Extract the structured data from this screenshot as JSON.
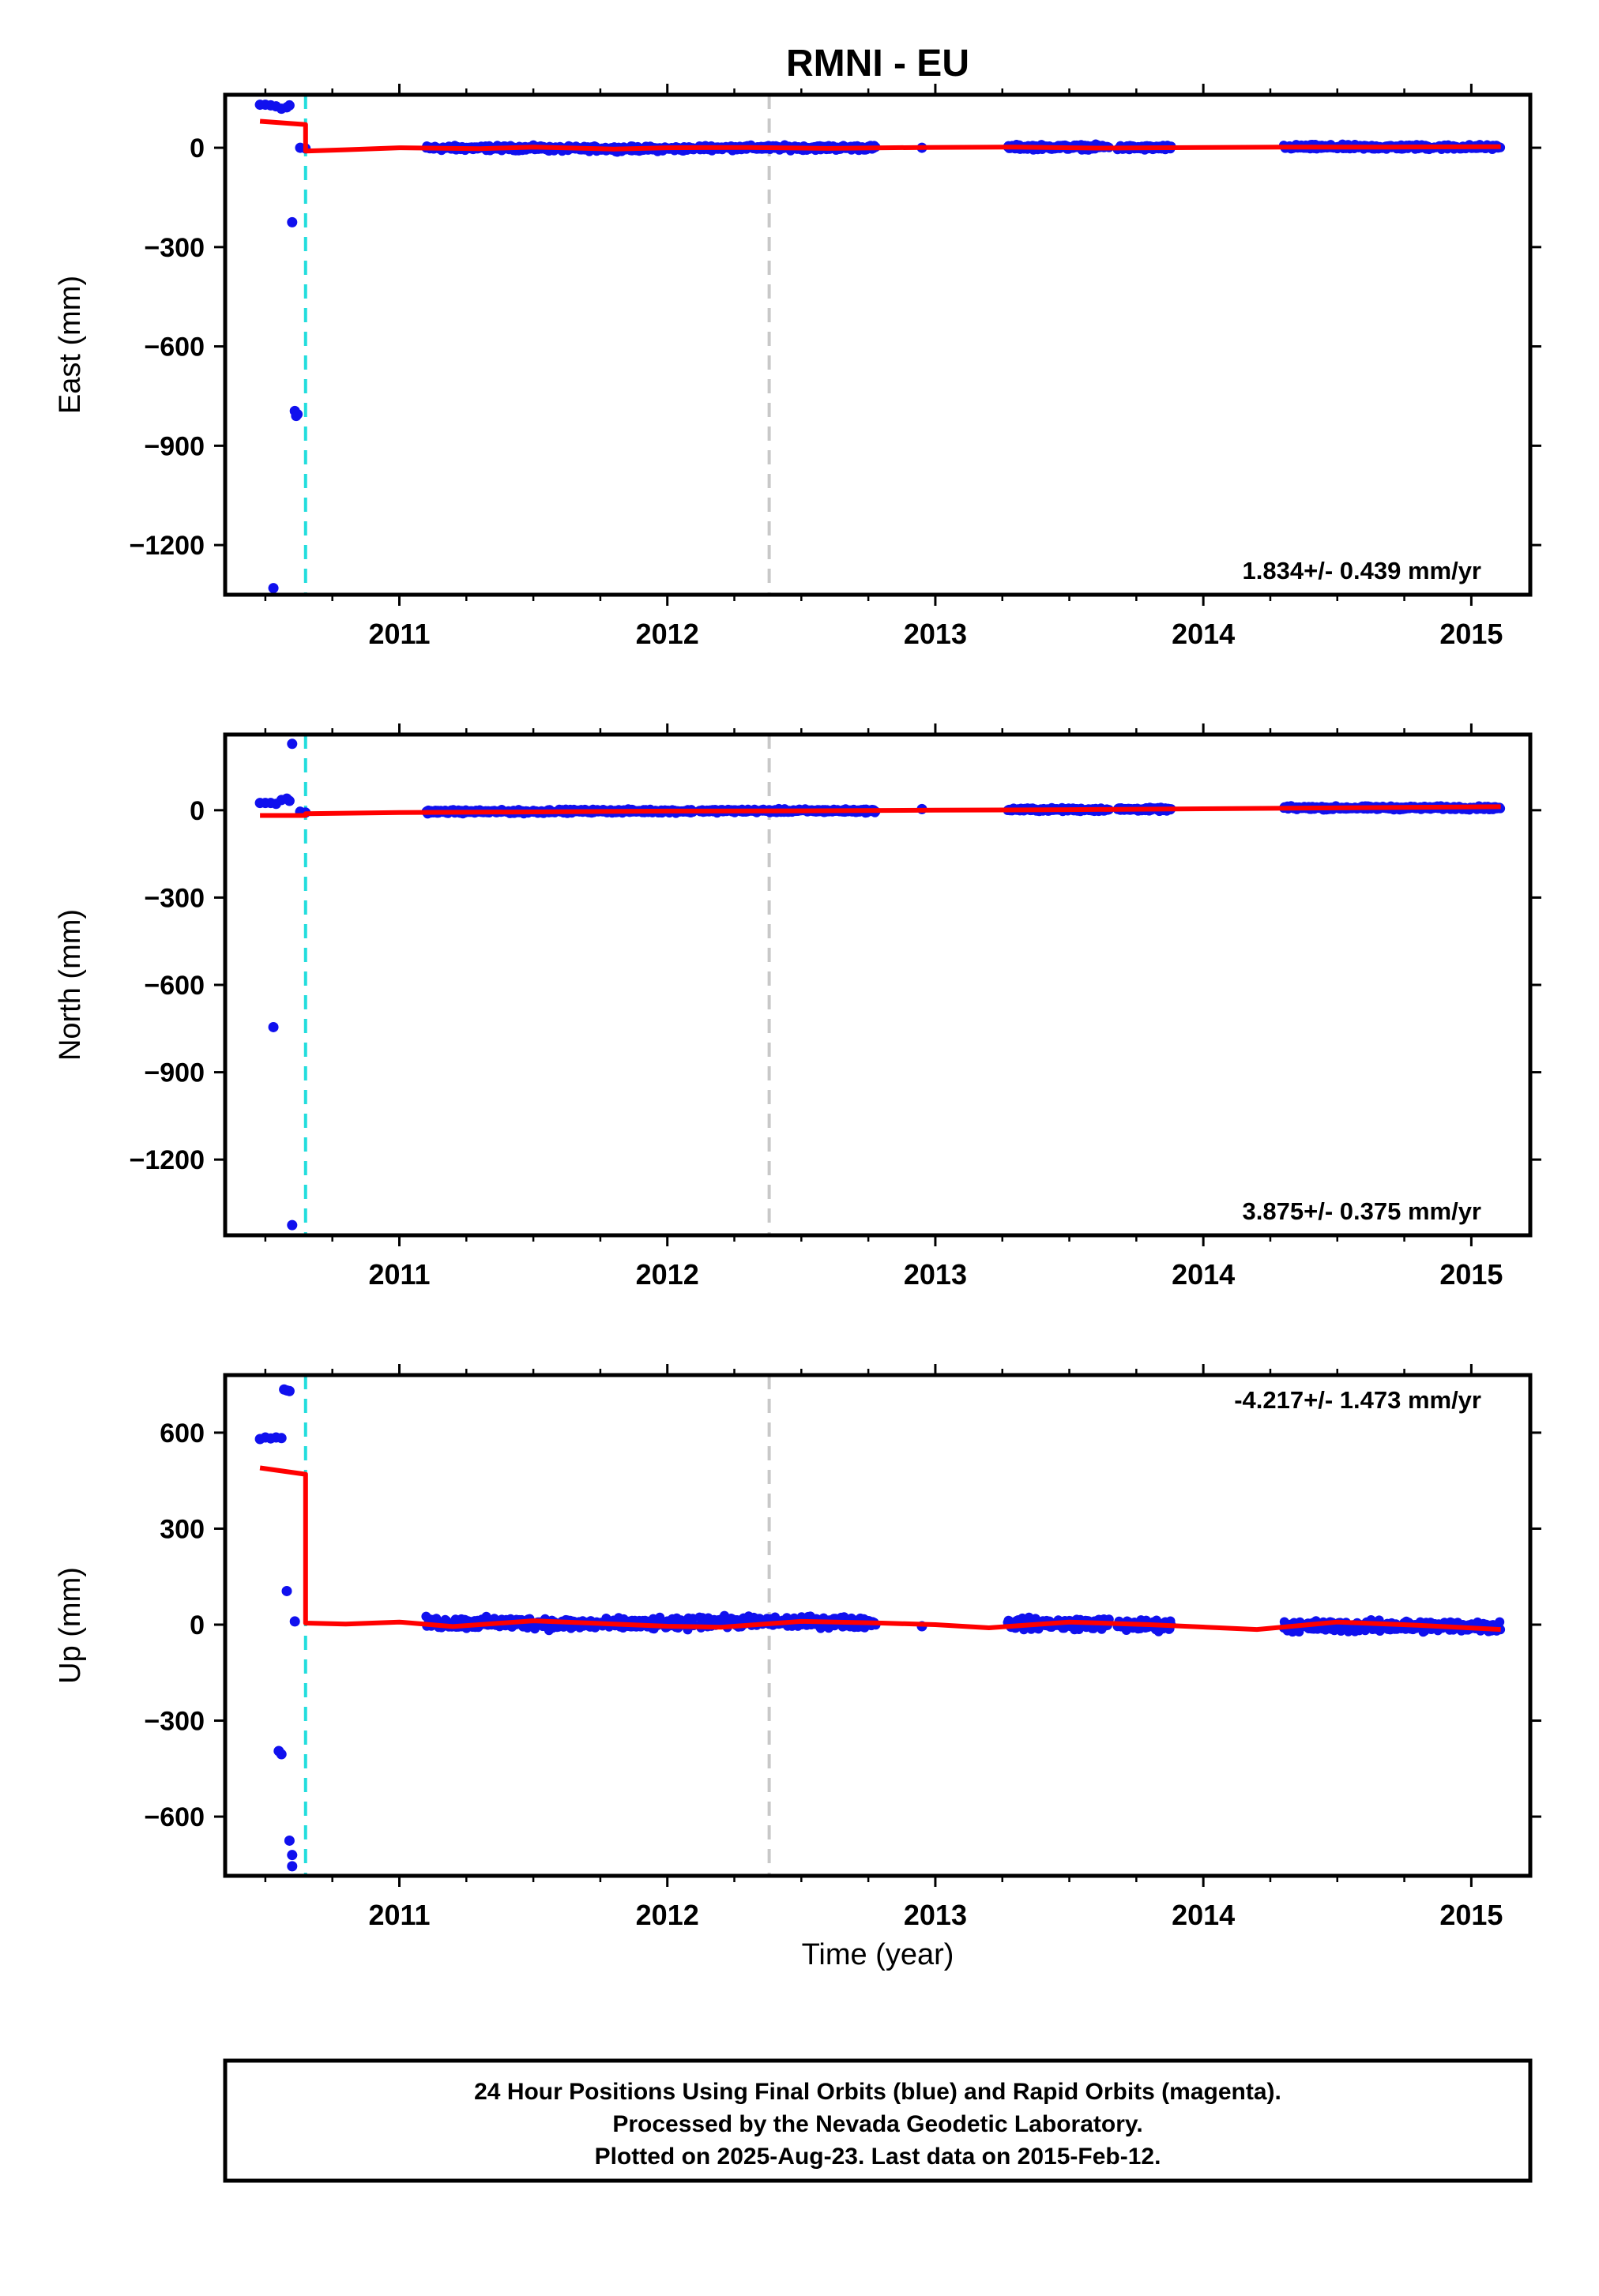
{
  "title": "RMNI - EU",
  "xlabel": "Time (year)",
  "footer": {
    "lines": [
      "24 Hour Positions Using Final Orbits (blue) and Rapid Orbits (magenta).",
      "Processed by the Nevada Geodetic Laboratory.",
      "Plotted on 2025-Aug-23. Last data on 2015-Feb-12."
    ]
  },
  "colors": {
    "data_points": "#1010ee",
    "model_line": "#ff0000",
    "offset_line_equipment": "#22dddd",
    "offset_line_other": "#c8c8c8",
    "frame": "#000000"
  },
  "chart_data": [
    {
      "type": "scatter",
      "ylabel": "East (mm)",
      "rate_text": "1.834+/- 0.439 mm/yr",
      "xlim": [
        2010.35,
        2015.22
      ],
      "ylim": [
        -1350,
        160
      ],
      "yticks": [
        0,
        -300,
        -600,
        -900,
        -1200
      ],
      "xticks": [
        2011,
        2012,
        2013,
        2014,
        2015
      ],
      "grid": false,
      "offsets": [
        {
          "year": 2010.65,
          "kind": "equipment"
        },
        {
          "year": 2012.38,
          "kind": "other"
        }
      ],
      "points": [
        [
          2010.48,
          130
        ],
        [
          2010.5,
          130
        ],
        [
          2010.52,
          128
        ],
        [
          2010.54,
          125
        ],
        [
          2010.56,
          118
        ],
        [
          2010.58,
          122
        ],
        [
          2010.59,
          128
        ],
        [
          2010.6,
          -225
        ],
        [
          2010.61,
          -795
        ],
        [
          2010.615,
          -810
        ],
        [
          2010.62,
          -805
        ],
        [
          2010.53,
          -1330
        ],
        [
          2010.63,
          0
        ],
        [
          2010.65,
          -2
        ]
      ],
      "segments": [
        {
          "start": 2011.1,
          "end": 2011.55,
          "base": -1,
          "noise": 6
        },
        {
          "start": 2011.55,
          "end": 2012.1,
          "base": -3,
          "noise": 6
        },
        {
          "start": 2012.12,
          "end": 2012.78,
          "base": 0,
          "noise": 6
        },
        {
          "start": 2013.27,
          "end": 2013.65,
          "base": 2,
          "noise": 6
        },
        {
          "start": 2013.68,
          "end": 2013.88,
          "base": 0,
          "noise": 6
        },
        {
          "start": 2014.3,
          "end": 2015.11,
          "base": 2,
          "noise": 6
        }
      ],
      "single_points": [
        [
          2012.95,
          0
        ]
      ],
      "model": [
        [
          2010.48,
          80
        ],
        [
          2010.65,
          70
        ],
        [
          2010.65,
          -10
        ],
        [
          2010.8,
          -6
        ],
        [
          2011.0,
          0
        ],
        [
          2011.3,
          -3
        ],
        [
          2011.5,
          2
        ],
        [
          2011.8,
          -4
        ],
        [
          2012.0,
          0
        ],
        [
          2012.3,
          1
        ],
        [
          2012.6,
          -2
        ],
        [
          2012.95,
          1
        ],
        [
          2013.3,
          2
        ],
        [
          2013.6,
          -1
        ],
        [
          2014.0,
          1
        ],
        [
          2014.3,
          2
        ],
        [
          2014.7,
          2
        ],
        [
          2015.11,
          3
        ]
      ]
    },
    {
      "type": "scatter",
      "ylabel": "North (mm)",
      "rate_text": "3.875+/- 0.375 mm/yr",
      "xlim": [
        2010.35,
        2015.22
      ],
      "ylim": [
        -1460,
        260
      ],
      "yticks": [
        0,
        -300,
        -600,
        -900,
        -1200
      ],
      "xticks": [
        2011,
        2012,
        2013,
        2014,
        2015
      ],
      "grid": false,
      "offsets": [
        {
          "year": 2010.65,
          "kind": "equipment"
        },
        {
          "year": 2012.38,
          "kind": "other"
        }
      ],
      "points": [
        [
          2010.48,
          25
        ],
        [
          2010.5,
          25
        ],
        [
          2010.52,
          25
        ],
        [
          2010.54,
          22
        ],
        [
          2010.56,
          35
        ],
        [
          2010.58,
          40
        ],
        [
          2010.59,
          32
        ],
        [
          2010.6,
          228
        ],
        [
          2010.53,
          -745
        ],
        [
          2010.6,
          -1425
        ],
        [
          2010.63,
          -5
        ],
        [
          2010.65,
          -8
        ]
      ],
      "segments": [
        {
          "start": 2011.1,
          "end": 2011.55,
          "base": -5,
          "noise": 5
        },
        {
          "start": 2011.55,
          "end": 2012.1,
          "base": -3,
          "noise": 5
        },
        {
          "start": 2012.12,
          "end": 2012.78,
          "base": -2,
          "noise": 5
        },
        {
          "start": 2013.27,
          "end": 2013.65,
          "base": 2,
          "noise": 5
        },
        {
          "start": 2013.68,
          "end": 2013.88,
          "base": 3,
          "noise": 5
        },
        {
          "start": 2014.3,
          "end": 2015.11,
          "base": 8,
          "noise": 5
        }
      ],
      "single_points": [
        [
          2012.95,
          4
        ]
      ],
      "model": [
        [
          2010.48,
          -18
        ],
        [
          2010.65,
          -18
        ],
        [
          2010.65,
          -12
        ],
        [
          2011.0,
          -8
        ],
        [
          2011.5,
          -6
        ],
        [
          2012.0,
          -3
        ],
        [
          2012.5,
          -2
        ],
        [
          2013.0,
          0
        ],
        [
          2013.5,
          2
        ],
        [
          2014.0,
          5
        ],
        [
          2014.5,
          8
        ],
        [
          2015.11,
          12
        ]
      ]
    },
    {
      "type": "scatter",
      "ylabel": "Up (mm)",
      "rate_text": "-4.217+/- 1.473 mm/yr",
      "xlim": [
        2010.35,
        2015.22
      ],
      "ylim": [
        -785,
        780
      ],
      "yticks": [
        600,
        300,
        0,
        -300,
        -600
      ],
      "xticks": [
        2011,
        2012,
        2013,
        2014,
        2015
      ],
      "grid": false,
      "offsets": [
        {
          "year": 2010.65,
          "kind": "equipment"
        },
        {
          "year": 2012.38,
          "kind": "other"
        }
      ],
      "points": [
        [
          2010.48,
          580
        ],
        [
          2010.5,
          585
        ],
        [
          2010.52,
          582
        ],
        [
          2010.54,
          585
        ],
        [
          2010.56,
          583
        ],
        [
          2010.57,
          735
        ],
        [
          2010.58,
          732
        ],
        [
          2010.59,
          730
        ],
        [
          2010.55,
          -395
        ],
        [
          2010.56,
          -405
        ],
        [
          2010.58,
          105
        ],
        [
          2010.61,
          10
        ],
        [
          2010.59,
          -675
        ],
        [
          2010.6,
          -720
        ],
        [
          2010.6,
          -755
        ]
      ],
      "segments": [
        {
          "start": 2011.1,
          "end": 2011.55,
          "base": 5,
          "noise": 14
        },
        {
          "start": 2011.55,
          "end": 2012.1,
          "base": 2,
          "noise": 14
        },
        {
          "start": 2012.12,
          "end": 2012.78,
          "base": 8,
          "noise": 14
        },
        {
          "start": 2013.27,
          "end": 2013.65,
          "base": 3,
          "noise": 14
        },
        {
          "start": 2013.68,
          "end": 2013.88,
          "base": -2,
          "noise": 14
        },
        {
          "start": 2014.3,
          "end": 2015.11,
          "base": -5,
          "noise": 14
        }
      ],
      "single_points": [
        [
          2012.95,
          -5
        ]
      ],
      "model": [
        [
          2010.48,
          490
        ],
        [
          2010.65,
          470
        ],
        [
          2010.65,
          5
        ],
        [
          2010.8,
          2
        ],
        [
          2011.0,
          8
        ],
        [
          2011.2,
          -6
        ],
        [
          2011.5,
          12
        ],
        [
          2011.8,
          2
        ],
        [
          2012.0,
          -5
        ],
        [
          2012.2,
          -8
        ],
        [
          2012.5,
          10
        ],
        [
          2012.8,
          5
        ],
        [
          2013.0,
          0
        ],
        [
          2013.2,
          -10
        ],
        [
          2013.5,
          8
        ],
        [
          2013.8,
          0
        ],
        [
          2014.2,
          -15
        ],
        [
          2014.5,
          8
        ],
        [
          2014.8,
          -2
        ],
        [
          2015.11,
          -15
        ]
      ]
    }
  ]
}
